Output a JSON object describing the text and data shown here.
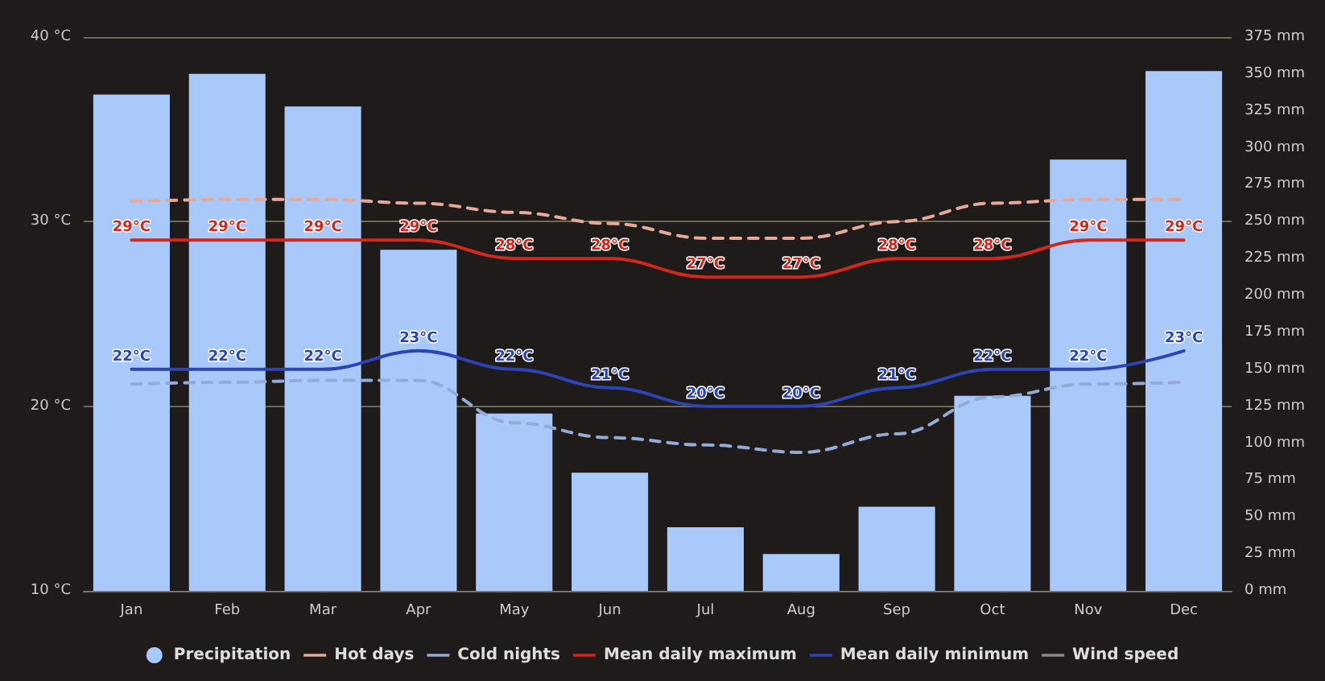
{
  "chart_data": {
    "type": "line",
    "categories": [
      "Jan",
      "Feb",
      "Mar",
      "Apr",
      "May",
      "Jun",
      "Jul",
      "Aug",
      "Sep",
      "Oct",
      "Nov",
      "Dec"
    ],
    "ylim": [
      10,
      40
    ],
    "yticks": [
      {
        "value": 10,
        "label": "10 °C"
      },
      {
        "value": 20,
        "label": "20 °C"
      },
      {
        "value": 30,
        "label": "30 °C"
      },
      {
        "value": 40,
        "label": "40 °C"
      }
    ],
    "y2lim": [
      0,
      375
    ],
    "y2ticks": [
      {
        "value": 0,
        "label": "0 mm"
      },
      {
        "value": 25,
        "label": "25 mm"
      },
      {
        "value": 50,
        "label": "50 mm"
      },
      {
        "value": 75,
        "label": "75 mm"
      },
      {
        "value": 100,
        "label": "100 mm"
      },
      {
        "value": 125,
        "label": "125 mm"
      },
      {
        "value": 150,
        "label": "150 mm"
      },
      {
        "value": 175,
        "label": "175 mm"
      },
      {
        "value": 200,
        "label": "200 mm"
      },
      {
        "value": 225,
        "label": "225 mm"
      },
      {
        "value": 250,
        "label": "250 mm"
      },
      {
        "value": 275,
        "label": "275 mm"
      },
      {
        "value": 300,
        "label": "300 mm"
      },
      {
        "value": 325,
        "label": "325 mm"
      },
      {
        "value": 350,
        "label": "350 mm"
      },
      {
        "value": 375,
        "label": "375 mm"
      }
    ],
    "grid": "y",
    "legend": "bottom",
    "marker": "none",
    "series": [
      {
        "name": "Precipitation",
        "type": "bar",
        "axis": "y2",
        "color": "#a9c9fb",
        "values": [
          336,
          350,
          328,
          231,
          120,
          80,
          43,
          25,
          57,
          132,
          292,
          352
        ]
      },
      {
        "name": "Hot days",
        "line_style": "dashed",
        "color": "#e8a898",
        "values": [
          31.1,
          31.2,
          31.2,
          31.0,
          30.5,
          29.9,
          29.1,
          29.1,
          30.0,
          31.0,
          31.2,
          31.2
        ]
      },
      {
        "name": "Cold nights",
        "line_style": "dashed",
        "color": "#93abd6",
        "values": [
          21.2,
          21.3,
          21.4,
          21.4,
          19.1,
          18.3,
          17.9,
          17.5,
          18.5,
          20.5,
          21.2,
          21.3
        ]
      },
      {
        "name": "Mean daily maximum",
        "line_style": "solid",
        "color": "#d0281c",
        "values": [
          29,
          29,
          29,
          29,
          28,
          28,
          27,
          27,
          28,
          28,
          29,
          29
        ],
        "value_labels": [
          "29°C",
          "29°C",
          "29°C",
          "29°C",
          "28°C",
          "28°C",
          "27°C",
          "27°C",
          "28°C",
          "28°C",
          "29°C",
          "29°C"
        ]
      },
      {
        "name": "Mean daily minimum",
        "line_style": "solid",
        "color": "#2c44b4",
        "values": [
          22,
          22,
          22,
          23,
          22,
          21,
          20,
          20,
          21,
          22,
          22,
          23
        ],
        "value_labels": [
          "22°C",
          "22°C",
          "22°C",
          "23°C",
          "22°C",
          "21°C",
          "20°C",
          "20°C",
          "21°C",
          "22°C",
          "22°C",
          "23°C"
        ]
      },
      {
        "name": "Wind speed",
        "line_style": "solid",
        "color": "#8a8a8a",
        "values": [
          null,
          null,
          null,
          null,
          null,
          null,
          null,
          null,
          null,
          null,
          null,
          null
        ]
      }
    ]
  }
}
